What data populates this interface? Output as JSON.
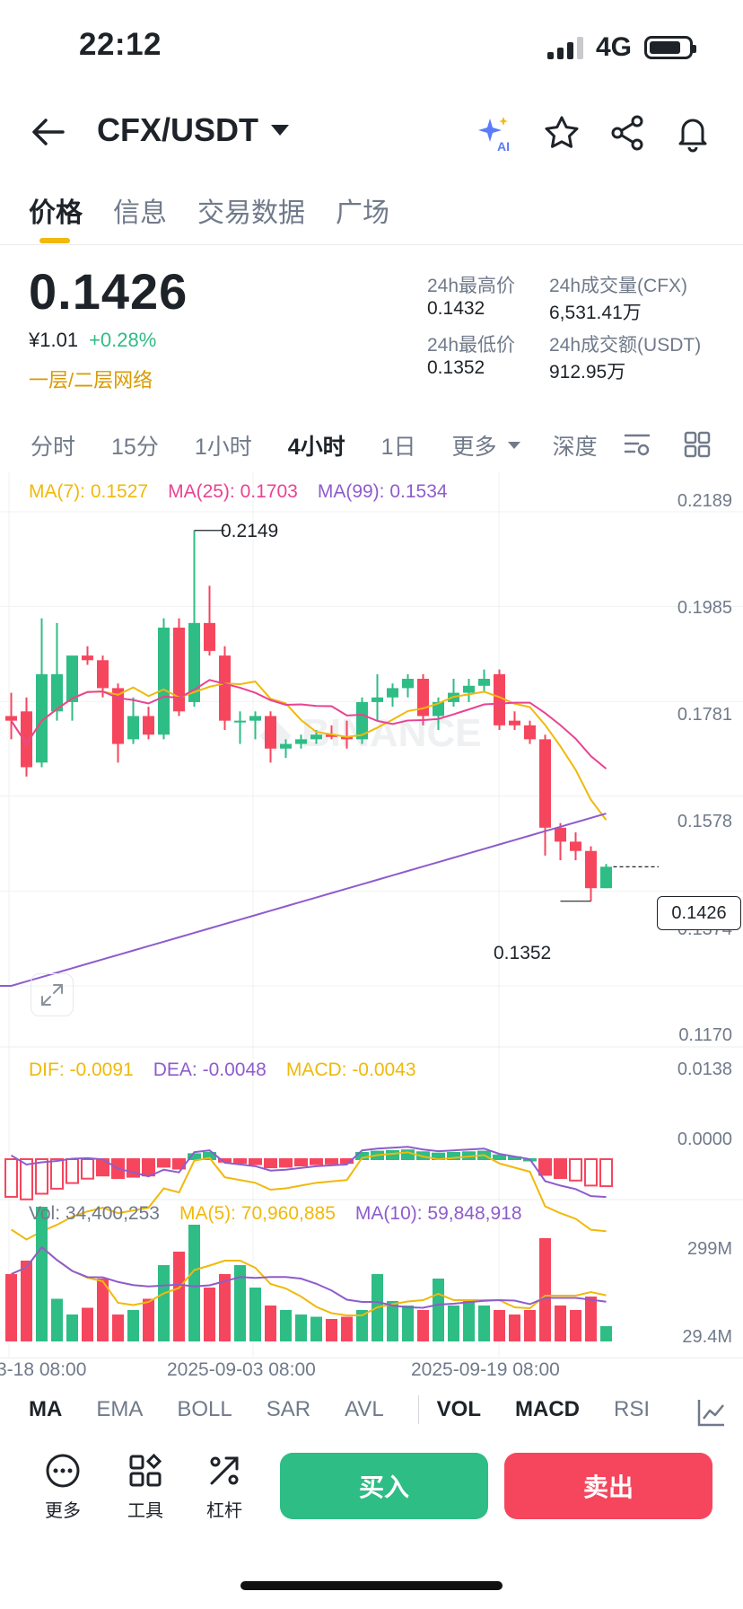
{
  "status": {
    "time": "22:12",
    "network": "4G"
  },
  "header": {
    "pair": "CFX/USDT",
    "ai_label": "AI"
  },
  "tabs": [
    "价格",
    "信息",
    "交易数据",
    "广场"
  ],
  "ticker": {
    "last_price": "0.1426",
    "fiat": "¥1.01",
    "change": "+0.28%",
    "network_note": "一层/二层网络",
    "high_label": "24h最高价",
    "high": "0.1432",
    "low_label": "24h最低价",
    "low": "0.1352",
    "vol_label": "24h成交量(CFX)",
    "vol": "6,531.41万",
    "amt_label": "24h成交额(USDT)",
    "amt": "912.95万"
  },
  "intervals": {
    "items": [
      "分时",
      "15分",
      "1小时",
      "4小时",
      "1日"
    ],
    "more": "更多",
    "depth": "深度",
    "selected": "4小时"
  },
  "ma_legend": {
    "ma7": "MA(7): 0.1527",
    "ma25": "MA(25): 0.1703",
    "ma99": "MA(99): 0.1534"
  },
  "price_axis": [
    "0.2189",
    "0.1985",
    "0.1781",
    "0.1578",
    "0.1374",
    "0.1170"
  ],
  "annotations": {
    "high": "0.2149",
    "low": "0.1352",
    "current": "0.1426"
  },
  "macd_legend": {
    "dif": "DIF: -0.0091",
    "dea": "DEA: -0.0048",
    "macd": "MACD: -0.0043"
  },
  "macd_axis": [
    "0.0138",
    "0.0000"
  ],
  "vol_legend": {
    "vol": "Vol: 34,400,253",
    "ma5": "MA(5): 70,960,885",
    "ma10": "MA(10): 59,848,918"
  },
  "vol_axis": [
    "299M",
    "29.4M"
  ],
  "time_axis": [
    "3-18 08:00",
    "2025-09-03 08:00",
    "2025-09-19 08:00"
  ],
  "indicator_tabs": [
    "MA",
    "EMA",
    "BOLL",
    "SAR",
    "AVL",
    "VOL",
    "MACD",
    "RSI"
  ],
  "bottom": {
    "more": "更多",
    "tools": "工具",
    "leverage": "杠杆",
    "buy": "买入",
    "sell": "卖出"
  },
  "colors": {
    "up": "#2ebd85",
    "down": "#f6465d",
    "ma7": "#f0b90b",
    "ma25": "#e84393",
    "ma99": "#8e5ccc"
  },
  "chart_data": {
    "type": "candlestick",
    "interval": "4小时",
    "candles": [
      {
        "o": 0.175,
        "h": 0.18,
        "l": 0.17,
        "c": 0.174
      },
      {
        "o": 0.176,
        "h": 0.179,
        "l": 0.162,
        "c": 0.164
      },
      {
        "o": 0.165,
        "h": 0.196,
        "l": 0.164,
        "c": 0.184
      },
      {
        "o": 0.176,
        "h": 0.195,
        "l": 0.174,
        "c": 0.184
      },
      {
        "o": 0.178,
        "h": 0.187,
        "l": 0.174,
        "c": 0.188
      },
      {
        "o": 0.188,
        "h": 0.19,
        "l": 0.186,
        "c": 0.187
      },
      {
        "o": 0.187,
        "h": 0.188,
        "l": 0.179,
        "c": 0.181
      },
      {
        "o": 0.181,
        "h": 0.182,
        "l": 0.165,
        "c": 0.169
      },
      {
        "o": 0.17,
        "h": 0.179,
        "l": 0.169,
        "c": 0.175
      },
      {
        "o": 0.175,
        "h": 0.177,
        "l": 0.17,
        "c": 0.171
      },
      {
        "o": 0.171,
        "h": 0.196,
        "l": 0.17,
        "c": 0.194
      },
      {
        "o": 0.194,
        "h": 0.196,
        "l": 0.175,
        "c": 0.176
      },
      {
        "o": 0.178,
        "h": 0.2149,
        "l": 0.177,
        "c": 0.195
      },
      {
        "o": 0.195,
        "h": 0.203,
        "l": 0.188,
        "c": 0.189
      },
      {
        "o": 0.188,
        "h": 0.19,
        "l": 0.172,
        "c": 0.174
      },
      {
        "o": 0.174,
        "h": 0.176,
        "l": 0.169,
        "c": 0.174
      },
      {
        "o": 0.174,
        "h": 0.176,
        "l": 0.17,
        "c": 0.175
      },
      {
        "o": 0.175,
        "h": 0.176,
        "l": 0.165,
        "c": 0.168
      },
      {
        "o": 0.168,
        "h": 0.17,
        "l": 0.166,
        "c": 0.169
      },
      {
        "o": 0.169,
        "h": 0.171,
        "l": 0.168,
        "c": 0.17
      },
      {
        "o": 0.17,
        "h": 0.172,
        "l": 0.169,
        "c": 0.171
      },
      {
        "o": 0.171,
        "h": 0.173,
        "l": 0.17,
        "c": 0.1705
      },
      {
        "o": 0.1705,
        "h": 0.174,
        "l": 0.168,
        "c": 0.17
      },
      {
        "o": 0.17,
        "h": 0.179,
        "l": 0.169,
        "c": 0.178
      },
      {
        "o": 0.178,
        "h": 0.184,
        "l": 0.174,
        "c": 0.179
      },
      {
        "o": 0.179,
        "h": 0.182,
        "l": 0.177,
        "c": 0.181
      },
      {
        "o": 0.181,
        "h": 0.184,
        "l": 0.179,
        "c": 0.183
      },
      {
        "o": 0.183,
        "h": 0.184,
        "l": 0.173,
        "c": 0.175
      },
      {
        "o": 0.175,
        "h": 0.179,
        "l": 0.172,
        "c": 0.178
      },
      {
        "o": 0.178,
        "h": 0.183,
        "l": 0.177,
        "c": 0.18
      },
      {
        "o": 0.18,
        "h": 0.183,
        "l": 0.178,
        "c": 0.1815
      },
      {
        "o": 0.1815,
        "h": 0.185,
        "l": 0.18,
        "c": 0.183
      },
      {
        "o": 0.184,
        "h": 0.185,
        "l": 0.172,
        "c": 0.173
      },
      {
        "o": 0.174,
        "h": 0.176,
        "l": 0.172,
        "c": 0.173
      },
      {
        "o": 0.173,
        "h": 0.174,
        "l": 0.169,
        "c": 0.17
      },
      {
        "o": 0.17,
        "h": 0.171,
        "l": 0.145,
        "c": 0.151
      },
      {
        "o": 0.151,
        "h": 0.152,
        "l": 0.144,
        "c": 0.148
      },
      {
        "o": 0.148,
        "h": 0.15,
        "l": 0.144,
        "c": 0.146
      },
      {
        "o": 0.146,
        "h": 0.147,
        "l": 0.1352,
        "c": 0.138
      },
      {
        "o": 0.138,
        "h": 0.1432,
        "l": 0.138,
        "c": 0.1426
      }
    ],
    "ylim": [
      0.117,
      0.2189
    ],
    "macd_hist": [
      -0.006,
      -0.0064,
      -0.0055,
      -0.0047,
      -0.0038,
      -0.0031,
      -0.0026,
      -0.003,
      -0.0028,
      -0.0026,
      -0.0012,
      -0.0015,
      0.0008,
      0.001,
      -0.0004,
      -0.0006,
      -0.0008,
      -0.0013,
      -0.0012,
      -0.001,
      -0.0008,
      -0.0007,
      -0.0006,
      0.001,
      0.0012,
      0.0013,
      0.0014,
      0.0011,
      0.0009,
      0.001,
      0.0011,
      0.0012,
      0.0006,
      0.0003,
      0.0,
      -0.0025,
      -0.003,
      -0.0034,
      -0.0042,
      -0.0043
    ],
    "volume": [
      150,
      180,
      300,
      95,
      60,
      75,
      140,
      60,
      70,
      95,
      170,
      200,
      260,
      120,
      150,
      170,
      120,
      80,
      70,
      60,
      55,
      50,
      55,
      70,
      150,
      90,
      80,
      70,
      140,
      80,
      90,
      80,
      70,
      60,
      70,
      230,
      80,
      70,
      100,
      34
    ]
  }
}
